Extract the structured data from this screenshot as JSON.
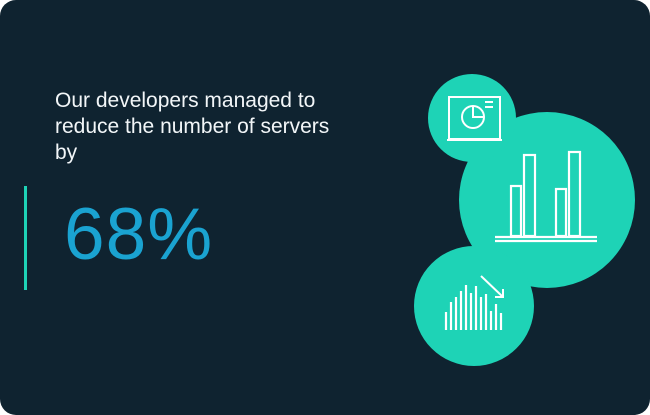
{
  "stat_card": {
    "headline": "Our developers managed to reduce the number of servers by",
    "value": "68%",
    "colors": {
      "background": "#0f2330",
      "accent": "#1ed3b6",
      "stat": "#1aa3d1",
      "text": "#f2f6f8"
    }
  },
  "illustration": {
    "icons": [
      "dashboard-monitor-icon",
      "bar-chart-icon",
      "decreasing-histogram-icon"
    ]
  }
}
